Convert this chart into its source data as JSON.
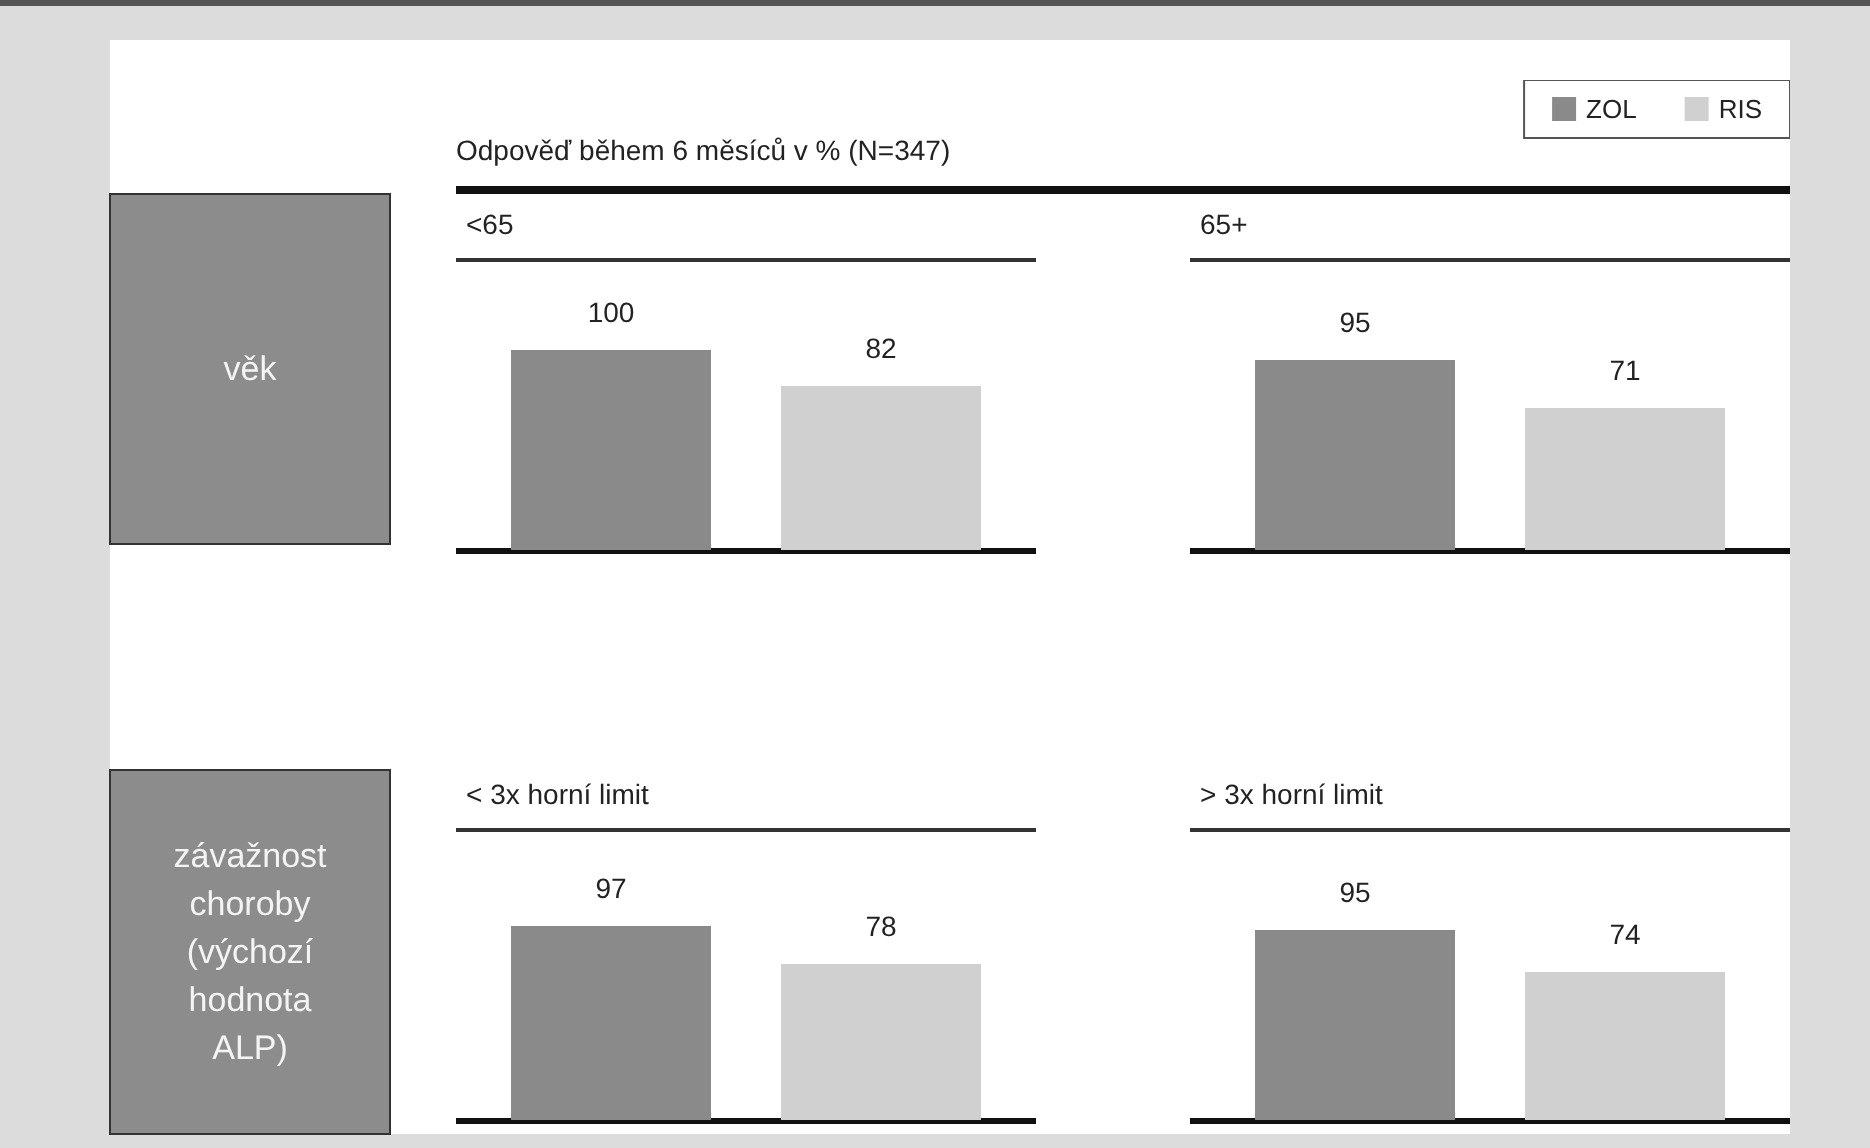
{
  "chart_data": [
    {
      "type": "other",
      "title": "Odpověď během 6 měsíců v % (N=347)",
      "annotations": [
        "věk",
        "závažnost choroby (výchozí hodnota ALP)"
      ]
    },
    {
      "type": "bar",
      "title": "<65",
      "categories": [
        null
      ],
      "series": [
        {
          "color": "#8a8a8a",
          "values": [
            100
          ]
        },
        {
          "color": "#d0d0d0",
          "values": [
            82
          ]
        }
      ],
      "data_labels": true,
      "tick_labels": false,
      "legend": false
    },
    {
      "type": "bar",
      "title": "65+",
      "categories": [
        null
      ],
      "series": [
        {
          "name": "ZOL",
          "color": "#8a8a8a",
          "values": [
            95
          ]
        },
        {
          "name": "RIS",
          "color": "#d0d0d0",
          "values": [
            71
          ]
        }
      ],
      "data_labels": true,
      "tick_labels": false,
      "legend": "top right"
    },
    {
      "type": "bar",
      "title": "< 3x horní limit",
      "categories": [
        null
      ],
      "series": [
        {
          "color": "#8a8a8a",
          "values": [
            97
          ]
        },
        {
          "color": "#d0d0d0",
          "values": [
            78
          ]
        }
      ],
      "data_labels": true,
      "tick_labels": false,
      "legend": false
    },
    {
      "type": "bar",
      "title": "> 3x horní limit",
      "categories": [
        null
      ],
      "series": [
        {
          "color": "#8a8a8a",
          "values": [
            95
          ]
        },
        {
          "color": "#d0d0d0",
          "values": [
            74
          ]
        }
      ],
      "data_labels": true,
      "tick_labels": false,
      "legend": false
    }
  ]
}
